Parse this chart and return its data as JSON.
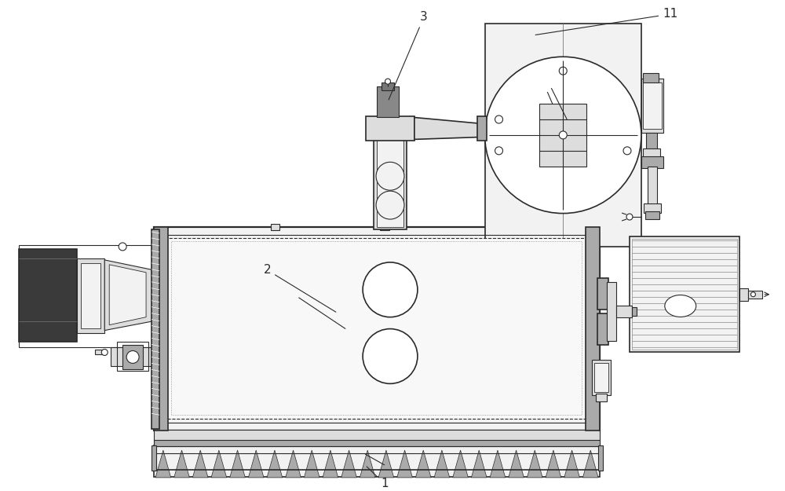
{
  "bg_color": "#ffffff",
  "lc": "#2a2a2a",
  "lc_gray": "#888888",
  "lc_light": "#bbbbbb",
  "fc_dark": "#3a3a3a",
  "fc_mid": "#aaaaaa",
  "fc_light": "#dddddd",
  "fc_very_light": "#f2f2f2",
  "fc_hatch": "#e8e8e8",
  "label_fs": 11
}
